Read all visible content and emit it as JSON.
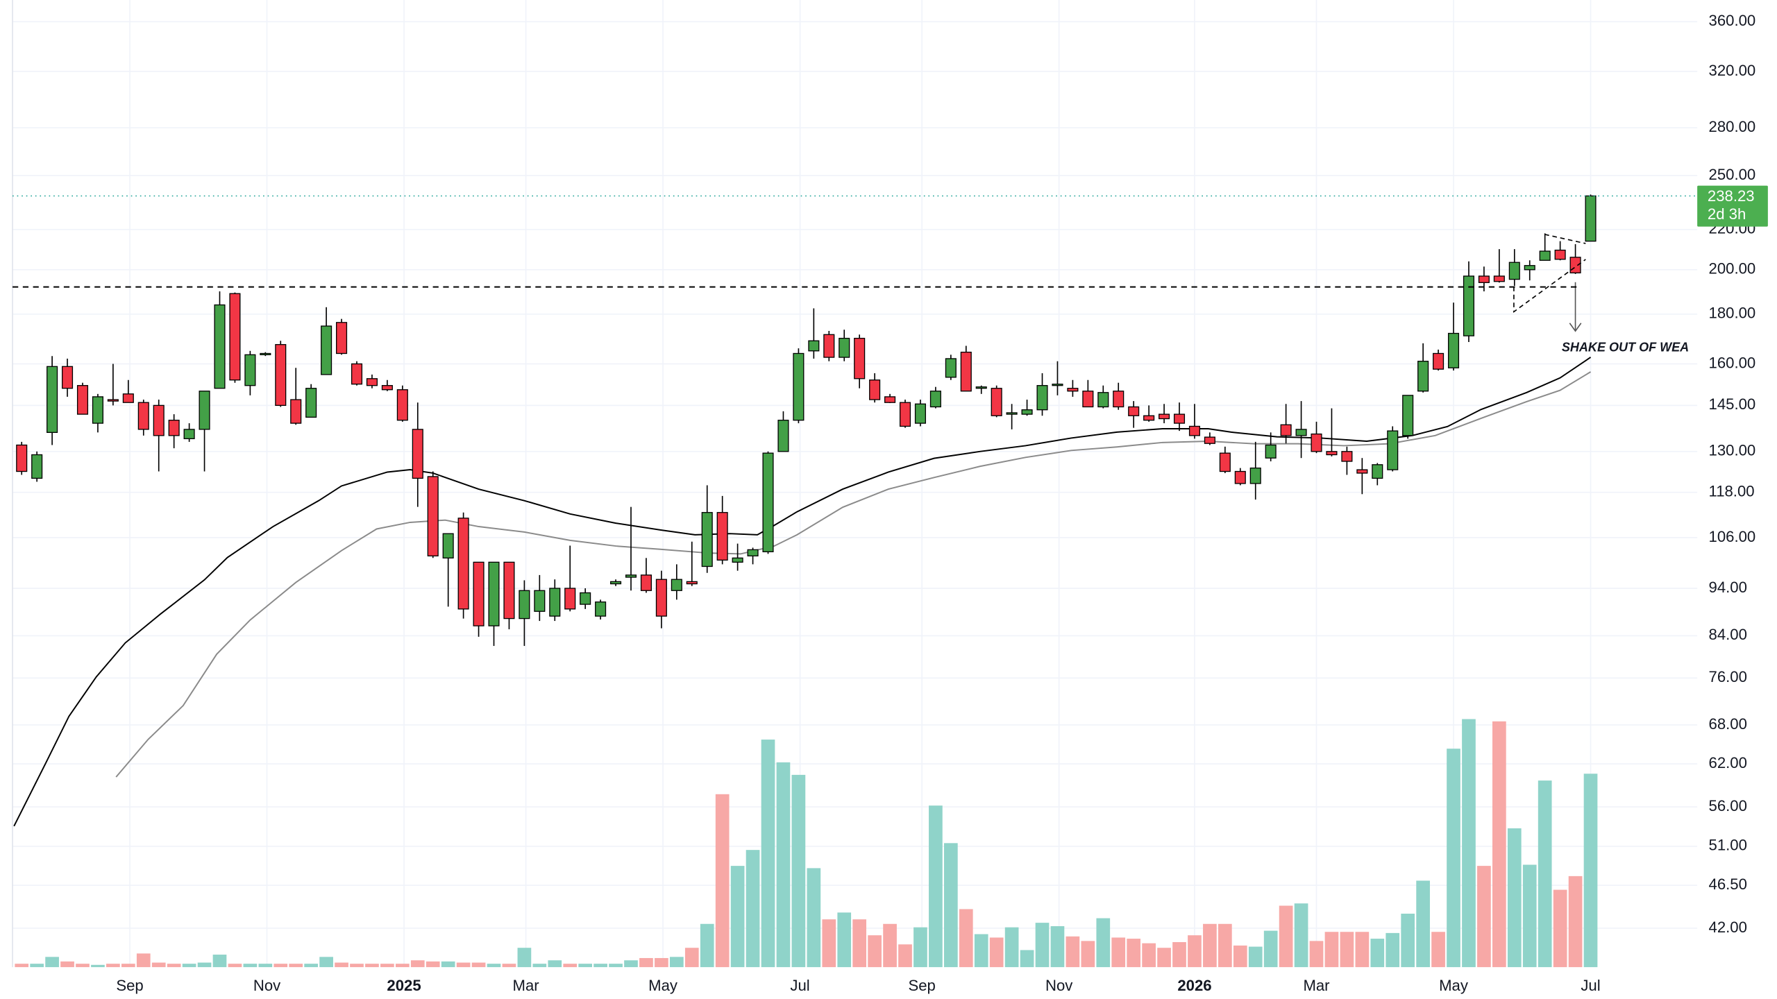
{
  "chart_data": {
    "type": "candlestick",
    "log_scale": true,
    "grid": true,
    "up_color": "#43a047",
    "down_color": "#f23645",
    "volume_up_color": "#8fd3c9",
    "volume_down_color": "#f7a8a6",
    "xlim": [
      -0.6,
      110
    ],
    "xticks": [
      {
        "value": 7.1,
        "label": "Sep"
      },
      {
        "value": 16.1,
        "label": "Nov"
      },
      {
        "value": 25.1,
        "label": "2025"
      },
      {
        "value": 33.1,
        "label": "Mar"
      },
      {
        "value": 42.1,
        "label": "May"
      },
      {
        "value": 51.1,
        "label": "Jul"
      },
      {
        "value": 59.1,
        "label": "Sep"
      },
      {
        "value": 68.1,
        "label": "Nov"
      },
      {
        "value": 77.0,
        "label": "2026"
      },
      {
        "value": 85.0,
        "label": "Mar"
      },
      {
        "value": 94.0,
        "label": "May"
      },
      {
        "value": 103,
        "label": "Jul"
      }
    ],
    "ylim": [
      38.3,
      379
    ],
    "yticks": [
      {
        "value": 360,
        "label": "360.00"
      },
      {
        "value": 320,
        "label": "320.00"
      },
      {
        "value": 280,
        "label": "280.00"
      },
      {
        "value": 250,
        "label": "250.00"
      },
      {
        "value": 220,
        "label": "220.00"
      },
      {
        "value": 200,
        "label": "200.00"
      },
      {
        "value": 180,
        "label": "180.00"
      },
      {
        "value": 160,
        "label": "160.00"
      },
      {
        "value": 145,
        "label": "145.00"
      },
      {
        "value": 130,
        "label": "130.00"
      },
      {
        "value": 118,
        "label": "118.00"
      },
      {
        "value": 106,
        "label": "106.00"
      },
      {
        "value": 94,
        "label": "94.00"
      },
      {
        "value": 84,
        "label": "84.00"
      },
      {
        "value": 76,
        "label": "76.00"
      },
      {
        "value": 68,
        "label": "68.00"
      },
      {
        "value": 62,
        "label": "62.00"
      },
      {
        "value": 56,
        "label": "56.00"
      },
      {
        "value": 51,
        "label": "51.00"
      },
      {
        "value": 46.5,
        "label": "46.50"
      },
      {
        "value": 42,
        "label": "42.00"
      }
    ],
    "open": [
      132,
      122,
      136,
      159,
      152,
      139,
      147,
      149,
      146,
      145,
      140,
      134,
      137,
      151,
      189,
      152,
      163.5,
      167.5,
      147,
      141,
      156,
      176.5,
      160,
      154.5,
      152,
      150.5,
      137,
      122.5,
      101,
      111,
      100,
      86,
      100,
      87.5,
      89,
      88,
      94,
      90.5,
      88,
      95,
      96.5,
      97,
      96,
      93.5,
      95.5,
      99,
      112.5,
      100,
      101.5,
      102.5,
      130,
      140,
      165,
      171.5,
      162.5,
      170,
      154,
      148,
      146,
      139,
      144.5,
      155,
      164.5,
      151,
      151,
      142,
      142,
      143.5,
      152,
      151,
      150,
      144.5,
      150,
      144.5,
      141.5,
      142,
      142,
      138,
      134.5,
      129.5,
      124,
      120.5,
      128,
      138.5,
      135,
      135.5,
      130,
      130,
      124.5,
      122,
      124.5,
      135,
      150,
      164,
      158.5,
      171,
      197,
      197,
      195.5,
      200,
      204.5,
      209.5,
      206,
      214
    ],
    "high": [
      133,
      130,
      163,
      162,
      153,
      149,
      160,
      154,
      147,
      147,
      142,
      139,
      150,
      190,
      189.5,
      165,
      164.5,
      169,
      158.5,
      152.5,
      183,
      178,
      161,
      156,
      154,
      152,
      146,
      124,
      107,
      112.5,
      100,
      100,
      100,
      95.8,
      97,
      96,
      104,
      94,
      91.5,
      96,
      114,
      101,
      98,
      99.5,
      105,
      120,
      117,
      104.5,
      103.5,
      130,
      143,
      166,
      182.5,
      173,
      173.5,
      171.5,
      156.5,
      149,
      147,
      147,
      151.5,
      163.5,
      167,
      152,
      152,
      145.5,
      147,
      156.5,
      161,
      154,
      154,
      152,
      153,
      146.5,
      145,
      145.5,
      146,
      145.5,
      136,
      131.5,
      125,
      133,
      136,
      145.5,
      146.5,
      139.5,
      144,
      131.5,
      128,
      126.5,
      138,
      148.5,
      168,
      165.5,
      185,
      204,
      201.5,
      210,
      210,
      204.5,
      218,
      214,
      212.5,
      239
    ],
    "low": [
      123,
      121,
      132,
      148,
      142,
      136,
      145,
      146,
      135,
      124,
      131,
      133,
      124,
      151,
      153,
      148.5,
      163,
      144.5,
      138.5,
      141,
      156,
      163.5,
      152,
      151,
      150,
      139.5,
      114,
      101,
      90,
      87.5,
      83.8,
      82,
      85.3,
      82,
      87,
      87,
      89,
      89.5,
      87.3,
      94.5,
      93.5,
      93,
      85.5,
      91.5,
      94.5,
      97.5,
      99.5,
      98,
      99.5,
      102,
      130,
      139,
      162,
      161,
      161,
      151,
      146,
      145.8,
      137.5,
      138,
      144,
      154,
      150,
      149,
      141,
      137,
      141.5,
      141.5,
      148.5,
      148,
      144.5,
      144,
      143.5,
      137.5,
      139.5,
      139,
      136.5,
      134,
      132,
      123.5,
      120,
      116,
      127,
      132.5,
      128,
      129.5,
      128.5,
      123,
      117.5,
      120,
      124,
      134,
      149.5,
      157.5,
      157.5,
      168.5,
      190,
      194,
      192.5,
      195,
      204.5,
      204.5,
      198,
      214
    ],
    "close": [
      124,
      129,
      159,
      151,
      142,
      148,
      146.5,
      146,
      137,
      135,
      135,
      137,
      150,
      184,
      154,
      163.5,
      164,
      145,
      139,
      151,
      175,
      164,
      152.5,
      152,
      150.5,
      140,
      122,
      101.5,
      107,
      89.5,
      86,
      100,
      87.5,
      93.5,
      93.5,
      94,
      89.5,
      93,
      91,
      95.5,
      97,
      93.5,
      88,
      96,
      95,
      112.5,
      100.5,
      101,
      103,
      129.5,
      140,
      164,
      169,
      162.5,
      170,
      154.5,
      147,
      146,
      138,
      145.5,
      150,
      162,
      150,
      151.5,
      141.5,
      142.5,
      143.5,
      152,
      152.5,
      150,
      144.5,
      149.5,
      144.5,
      141.5,
      140,
      140.5,
      139,
      135,
      132.5,
      124,
      120.5,
      125,
      132,
      135,
      137,
      130,
      129,
      127,
      123.5,
      126,
      136.5,
      148.5,
      161,
      158,
      172,
      197,
      194,
      194.5,
      203.5,
      202,
      209,
      205,
      198.5,
      238.23
    ],
    "volume_lim": [
      0,
      240
    ],
    "volume": [
      3,
      3,
      9,
      5,
      3,
      2,
      3,
      3,
      12,
      4,
      3,
      3,
      4,
      11,
      3,
      3,
      3,
      3,
      3,
      3,
      9,
      4,
      3,
      3,
      3,
      3,
      6,
      5,
      5,
      4,
      4,
      3,
      3,
      17,
      3,
      6,
      3,
      3,
      3,
      3,
      6,
      8,
      8,
      9,
      17,
      38,
      152,
      89,
      103,
      200,
      180,
      169,
      87,
      42,
      48,
      42,
      28,
      38,
      20,
      35,
      142,
      109,
      51,
      29,
      26,
      35,
      15,
      39,
      36,
      27,
      23,
      43,
      26,
      25,
      21,
      17,
      22,
      28,
      38,
      38,
      19,
      18,
      32,
      54,
      56,
      23,
      31,
      31,
      31,
      25,
      30,
      47,
      76,
      31,
      192,
      218,
      89,
      216,
      122,
      90,
      164,
      68,
      80,
      170
    ],
    "moving_averages": [
      {
        "color": "#000000",
        "x": [
          -0.5,
          1.6,
          3.1,
          4.9,
          6.8,
          9.1,
          12,
          13.5,
          16.5,
          19.5,
          21,
          24,
          25.5,
          27,
          30,
          33,
          36,
          39,
          42,
          44.2,
          46.5,
          48.3,
          49.4,
          50.9,
          53.9,
          56.9,
          59.9,
          62.9,
          65.9,
          68.9,
          71.9,
          74.9,
          77.9,
          79.4,
          82.4,
          85.3,
          88.3,
          91.3,
          93.6,
          95.8,
          98.8,
          101,
          103
        ],
        "values": [
          53.5,
          62.2,
          69.4,
          76.2,
          82.6,
          88.4,
          95.9,
          101.1,
          108.8,
          115.7,
          119.8,
          123.8,
          124.5,
          123.5,
          118.9,
          115.7,
          112.1,
          109.7,
          107.9,
          106.7,
          107,
          106.7,
          109.1,
          112.7,
          118.9,
          123.8,
          127.9,
          130,
          131.8,
          134.2,
          136.1,
          137.2,
          137.2,
          136.1,
          134.6,
          134.2,
          133.2,
          135,
          137.9,
          143.6,
          149.5,
          154.8,
          162.5
        ]
      },
      {
        "color": "#8a8a8a",
        "x": [
          6.2,
          8.3,
          10.6,
          12.8,
          15,
          18,
          21,
          23.3,
          25.5,
          27.8,
          30,
          33,
          36,
          39,
          42,
          45,
          47.2,
          49.4,
          50.9,
          53.9,
          56.9,
          59.9,
          62.9,
          65.9,
          68.9,
          71.9,
          74.9,
          77.9,
          80.9,
          83.8,
          86.8,
          89.8,
          92.8,
          95.8,
          98.8,
          101,
          103
        ],
        "values": [
          60.1,
          65.7,
          71.2,
          80.4,
          87.2,
          95.3,
          102.8,
          108.2,
          109.9,
          110.5,
          108.8,
          107.4,
          105.3,
          103.9,
          103.1,
          102.2,
          102,
          103.9,
          106.7,
          113.9,
          118.9,
          122.2,
          125.5,
          128.2,
          130.3,
          131.4,
          132.8,
          133.2,
          132.4,
          132.4,
          131.8,
          132.4,
          135,
          140.6,
          146.3,
          150.3,
          157
        ]
      }
    ],
    "level": 192,
    "countdown": "2d 3h",
    "annotation": "SHAKE OUT OF WEA"
  }
}
